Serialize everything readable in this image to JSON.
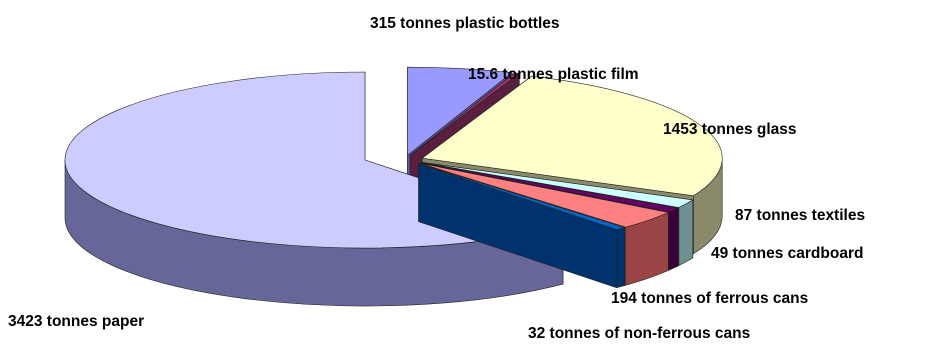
{
  "chart_data": {
    "type": "pie",
    "three_d": true,
    "exploded": true,
    "legend": "none",
    "slices": [
      {
        "label": "315 tonnes plastic bottles",
        "value": 315,
        "color": "#9999ff",
        "side": "#5f5fb0"
      },
      {
        "label": "15.6 tonnes plastic film",
        "value": 15.6,
        "color": "#993366",
        "side": "#5a1f3f"
      },
      {
        "label": "1453 tonnes glass",
        "value": 1453,
        "color": "#ffffcc",
        "side": "#8a8a6b"
      },
      {
        "label": "87 tonnes textiles",
        "value": 87,
        "color": "#ccffff",
        "side": "#6f9191"
      },
      {
        "label": "49 tonnes cardboard",
        "value": 49,
        "color": "#660066",
        "side": "#3a003a"
      },
      {
        "label": "194 tonnes of ferrous cans",
        "value": 194,
        "color": "#ff8080",
        "side": "#9a4545"
      },
      {
        "label": "32 tonnes of non-ferrous cans",
        "value": 32,
        "color": "#0066cc",
        "side": "#00336e"
      },
      {
        "label": "3423 tonnes paper",
        "value": 3423,
        "color": "#ccccff",
        "side": "#666699"
      }
    ]
  }
}
